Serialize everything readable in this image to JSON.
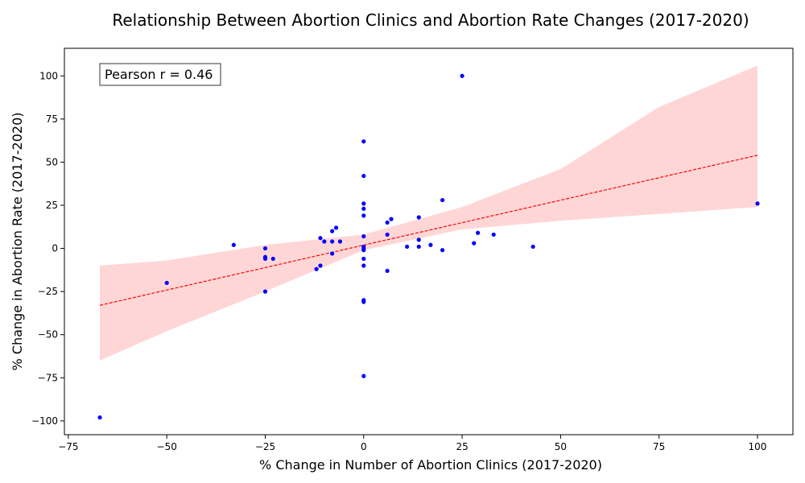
{
  "chart_data": {
    "type": "scatter",
    "title": "Relationship Between Abortion Clinics and Abortion Rate Changes (2017-2020)",
    "xlabel": "% Change in Number of Abortion Clinics (2017-2020)",
    "ylabel": "% Change in Abortion Rate (2017-2020)",
    "xlim": [
      -76,
      109
    ],
    "ylim": [
      -108,
      116
    ],
    "xticks": [
      -75,
      -50,
      -25,
      0,
      25,
      50,
      75,
      100
    ],
    "yticks": [
      -100,
      -75,
      -50,
      -25,
      0,
      25,
      50,
      75,
      100
    ],
    "grid": false,
    "colors": {
      "points": "#0000ff",
      "regression_line": "#ff0000",
      "confidence_band": "#ffd6d6"
    },
    "annotation": "Pearson r = 0.46",
    "annotation_position": "top-left",
    "regression": {
      "x_range": [
        -67,
        100
      ],
      "y_at_start": -33,
      "y_at_end": 54
    },
    "confidence_band": {
      "x": [
        -67,
        -50,
        -25,
        0,
        25,
        50,
        75,
        100
      ],
      "lower": [
        -65,
        -48,
        -25,
        -1,
        11,
        16,
        20,
        24
      ],
      "upper": [
        -10,
        -7,
        2,
        8,
        24,
        46,
        82,
        106
      ]
    },
    "points": [
      {
        "x": -67,
        "y": -98
      },
      {
        "x": -50,
        "y": -20
      },
      {
        "x": -33,
        "y": 2
      },
      {
        "x": -25,
        "y": 0
      },
      {
        "x": -25,
        "y": -5
      },
      {
        "x": -25,
        "y": -6
      },
      {
        "x": -25,
        "y": -25
      },
      {
        "x": -23,
        "y": -6
      },
      {
        "x": -12,
        "y": -12
      },
      {
        "x": -11,
        "y": 6
      },
      {
        "x": -11,
        "y": -10
      },
      {
        "x": -10,
        "y": 4
      },
      {
        "x": -8,
        "y": 10
      },
      {
        "x": -8,
        "y": 4
      },
      {
        "x": -8,
        "y": -3
      },
      {
        "x": -7,
        "y": 12
      },
      {
        "x": -6,
        "y": 4
      },
      {
        "x": 0,
        "y": 62
      },
      {
        "x": 0,
        "y": 42
      },
      {
        "x": 0,
        "y": 26
      },
      {
        "x": 0,
        "y": 23
      },
      {
        "x": 0,
        "y": 19
      },
      {
        "x": 0,
        "y": 7
      },
      {
        "x": 0,
        "y": 1
      },
      {
        "x": 0,
        "y": 0
      },
      {
        "x": 0,
        "y": -1
      },
      {
        "x": 0,
        "y": -6
      },
      {
        "x": 0,
        "y": -10
      },
      {
        "x": 0,
        "y": -30
      },
      {
        "x": 0,
        "y": -31
      },
      {
        "x": 0,
        "y": -74
      },
      {
        "x": 6,
        "y": 15
      },
      {
        "x": 6,
        "y": 8
      },
      {
        "x": 6,
        "y": -13
      },
      {
        "x": 7,
        "y": 17
      },
      {
        "x": 11,
        "y": 1
      },
      {
        "x": 14,
        "y": 18
      },
      {
        "x": 14,
        "y": 5
      },
      {
        "x": 14,
        "y": 1
      },
      {
        "x": 17,
        "y": 2
      },
      {
        "x": 20,
        "y": 28
      },
      {
        "x": 20,
        "y": -1
      },
      {
        "x": 25,
        "y": 100
      },
      {
        "x": 28,
        "y": 3
      },
      {
        "x": 29,
        "y": 9
      },
      {
        "x": 33,
        "y": 8
      },
      {
        "x": 43,
        "y": 1
      },
      {
        "x": 100,
        "y": 26
      }
    ]
  }
}
